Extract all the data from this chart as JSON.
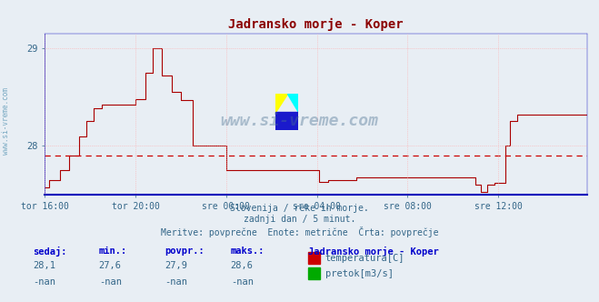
{
  "title": "Jadransko morje - Koper",
  "title_color": "#8b0000",
  "background_color": "#e8eef4",
  "plot_bg_color": "#e8eef4",
  "ylim_min": 27.5,
  "ylim_max": 29.15,
  "yticks": [
    28.0,
    29.0
  ],
  "avg_line": 27.9,
  "avg_line_color": "#cc0000",
  "line_color": "#aa0000",
  "watermark_color": "#4a7090",
  "axis_color": "#0000bb",
  "tick_color": "#336688",
  "grid_color": "#ffaaaa",
  "footer_line1": "Slovenija / reke in morje.",
  "footer_line2": "zadnji dan / 5 minut.",
  "footer_line3": "Meritve: povprečne  Enote: metrične  Črta: povprečje",
  "footer_color": "#336688",
  "legend_title": "Jadransko morje - Koper",
  "legend_items": [
    {
      "label": "temperatura[C]",
      "color": "#cc0000"
    },
    {
      "label": "pretok[m3/s]",
      "color": "#00aa00"
    }
  ],
  "table_headers": [
    "sedaj:",
    "min.:",
    "povpr.:",
    "maks.:"
  ],
  "table_row1": [
    "28,1",
    "27,6",
    "27,9",
    "28,6"
  ],
  "table_row2": [
    "-nan",
    "-nan",
    "-nan",
    "-nan"
  ],
  "table_header_color": "#0000cc",
  "table_value_color": "#336688",
  "sidebar_text": "www.si-vreme.com",
  "sidebar_color": "#5090b0",
  "x_tick_labels": [
    "tor 16:00",
    "tor 20:00",
    "sre 00:00",
    "sre 04:00",
    "sre 08:00",
    "sre 12:00"
  ],
  "x_tick_positions": [
    0,
    48,
    96,
    144,
    192,
    240
  ],
  "total_points": 288
}
